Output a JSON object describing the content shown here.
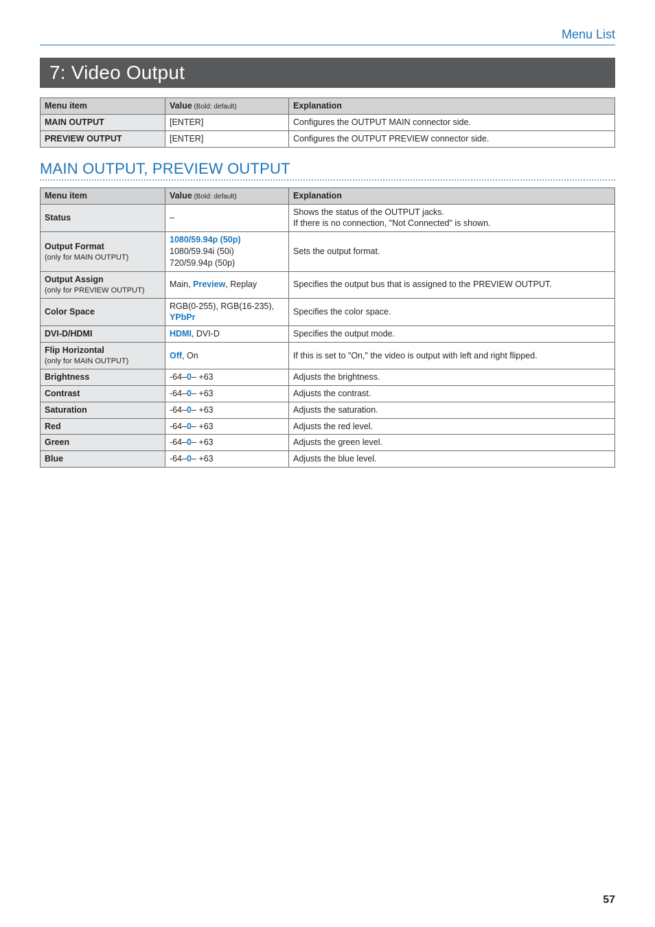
{
  "header": {
    "section": "Menu List"
  },
  "banner": {
    "title": "7: Video Output"
  },
  "table1": {
    "headers": {
      "menu": "Menu item",
      "value_main": "Value",
      "value_sub": " (Bold: default)",
      "explanation": "Explanation"
    },
    "rows": [
      {
        "menu": "MAIN OUTPUT",
        "value": "[ENTER]",
        "explanation": "Configures the OUTPUT MAIN connector side."
      },
      {
        "menu": "PREVIEW OUTPUT",
        "value": "[ENTER]",
        "explanation": "Configures the OUTPUT PREVIEW connector side."
      }
    ]
  },
  "subheading": "MAIN OUTPUT, PREVIEW OUTPUT",
  "table2": {
    "headers": {
      "menu": "Menu item",
      "value_main": "Value",
      "value_sub": " (Bold: default)",
      "explanation": "Explanation"
    },
    "rows": {
      "status": {
        "menu": "Status",
        "value": "–",
        "exp_line1": "Shows the status of the OUTPUT jacks.",
        "exp_line2": "If there is no connection, \"Not Connected\" is shown."
      },
      "output_format": {
        "menu_line1": "Output Format",
        "menu_line2": "(only for MAIN OUTPUT)",
        "val_line1_bold": "1080/59.94p (50p)",
        "val_line2": "1080/59.94i (50i)",
        "val_line3": "720/59.94p (50p)",
        "explanation": "Sets the output format."
      },
      "output_assign": {
        "menu_line1": "Output Assign",
        "menu_line2": "(only for PREVIEW OUTPUT)",
        "val_pre": "Main, ",
        "val_bold": "Preview",
        "val_post": ", Replay",
        "explanation": "Specifies the output bus that is assigned to the PREVIEW OUTPUT."
      },
      "color_space": {
        "menu": "Color Space",
        "val_pre": "RGB(0-255), RGB(16-235), ",
        "val_bold": "YPbPr",
        "explanation": "Specifies the color space."
      },
      "dvi": {
        "menu": "DVI-D/HDMI",
        "val_bold": "HDMI",
        "val_post": ", DVI-D",
        "explanation": "Specifies the output mode."
      },
      "flip": {
        "menu_line1": "Flip Horizontal",
        "menu_line2": "(only for MAIN OUTPUT)",
        "val_bold": "Off",
        "val_post": ", On",
        "explanation": "If this is set to \"On,\" the video is output with left and right flipped."
      },
      "brightness": {
        "menu": "Brightness",
        "val_pre": "-64–",
        "val_bold": "0",
        "val_post": "– +63",
        "explanation": "Adjusts the brightness."
      },
      "contrast": {
        "menu": "Contrast",
        "val_pre": "-64–",
        "val_bold": "0",
        "val_post": "– +63",
        "explanation": "Adjusts the contrast."
      },
      "saturation": {
        "menu": "Saturation",
        "val_pre": "-64–",
        "val_bold": "0",
        "val_post": "– +63",
        "explanation": "Adjusts the saturation."
      },
      "red": {
        "menu": "Red",
        "val_pre": "-64–",
        "val_bold": "0",
        "val_post": "– +63",
        "explanation": "Adjusts the red level."
      },
      "green": {
        "menu": "Green",
        "val_pre": "-64–",
        "val_bold": "0",
        "val_post": "– +63",
        "explanation": "Adjusts the green level."
      },
      "blue": {
        "menu": "Blue",
        "val_pre": "-64–",
        "val_bold": "0",
        "val_post": "– +63",
        "explanation": "Adjusts the blue level."
      }
    }
  },
  "page_number": "57",
  "colors": {
    "brand_blue": "#1b75bb",
    "banner_bg": "#58595b",
    "th_bg": "#d1d3d4",
    "label_bg": "#e6e7e8",
    "border": "#6d6e71"
  }
}
